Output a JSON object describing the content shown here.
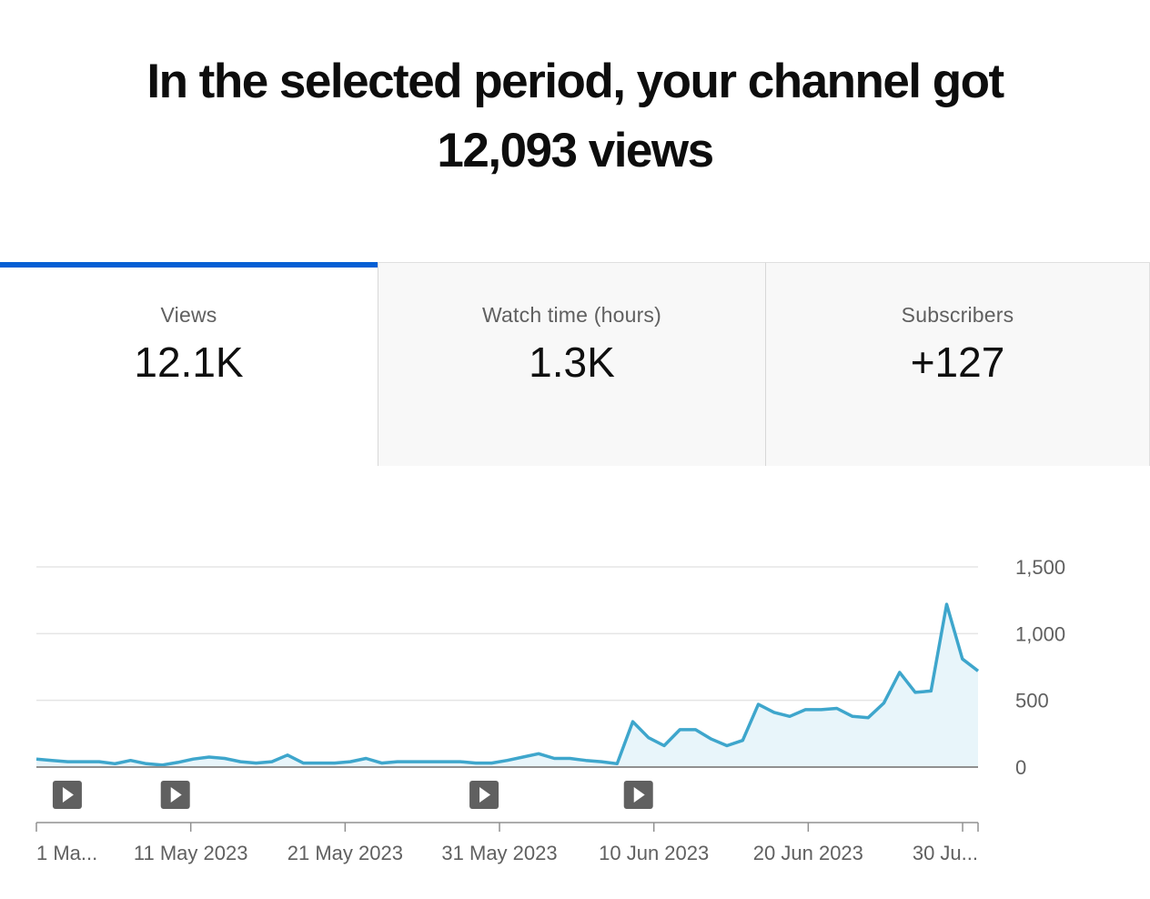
{
  "headline": {
    "line1": "In the selected period, your channel got",
    "line2": "12,093 views"
  },
  "tabs": [
    {
      "label": "Views",
      "value": "12.1K",
      "selected": true
    },
    {
      "label": "Watch time (hours)",
      "value": "1.3K",
      "selected": false
    },
    {
      "label": "Subscribers",
      "value": "+127",
      "selected": false
    }
  ],
  "colors": {
    "accent": "#065fd4",
    "line": "#3ea6cc",
    "area": "#e8f5fa",
    "grid": "#e5e5e5",
    "axis": "#909090",
    "marker": "#606060"
  },
  "chart_data": {
    "type": "area",
    "x_start": "1 May 2023",
    "x_end": "1 Jul 2023",
    "x_tick_labels": [
      "1 Ma...",
      "11 May 2023",
      "21 May 2023",
      "31 May 2023",
      "10 Jun 2023",
      "20 Jun 2023",
      "30 Ju..."
    ],
    "y_tick_labels": [
      "1,500",
      "1,000",
      "500",
      "0"
    ],
    "y_ticks": [
      1500,
      1000,
      500,
      0
    ],
    "ylim": [
      0,
      1500
    ],
    "grid": true,
    "series": [
      {
        "values": [
          60,
          50,
          40,
          40,
          40,
          25,
          50,
          25,
          15,
          35,
          60,
          75,
          65,
          40,
          30,
          40,
          90,
          30,
          30,
          30,
          40,
          65,
          30,
          40,
          40,
          40,
          40,
          40,
          30,
          30,
          50,
          75,
          100,
          65,
          65,
          50,
          40,
          25,
          340,
          220,
          160,
          280,
          280,
          210,
          160,
          200,
          470,
          410,
          380,
          430,
          430,
          440,
          380,
          370,
          480,
          710,
          560,
          570,
          1220,
          810,
          720
        ]
      }
    ],
    "video_markers": [
      "3 May 2023",
      "10 May 2023",
      "30 May 2023",
      "9 Jun 2023"
    ]
  }
}
